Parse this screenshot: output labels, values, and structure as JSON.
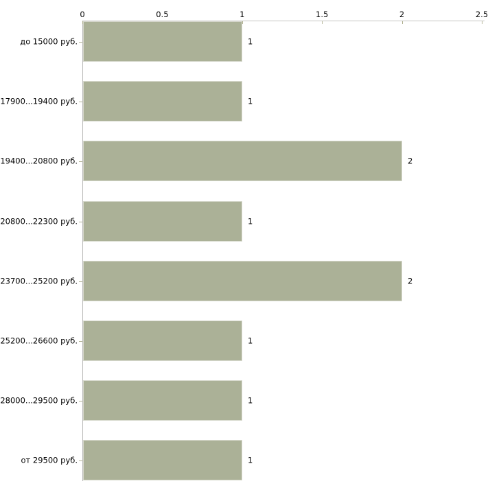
{
  "chart_data": {
    "type": "bar",
    "orientation": "horizontal",
    "title": "",
    "xlabel": "",
    "ylabel": "",
    "grid": false,
    "legend": null,
    "categories": [
      "до 15000 руб.",
      "17900...19400 руб.",
      "19400...20800 руб.",
      "20800...22300 руб.",
      "23700...25200 руб.",
      "25200...26600 руб.",
      "28000...29500 руб.",
      "от 29500 руб."
    ],
    "values": [
      1,
      1,
      2,
      1,
      2,
      1,
      1,
      1
    ],
    "value_labels": [
      "1",
      "1",
      "2",
      "1",
      "2",
      "1",
      "1",
      "1"
    ],
    "x_axis": {
      "position": "top",
      "min": 0,
      "max": 2.5,
      "ticks": [
        0,
        0.5,
        1,
        1.5,
        2,
        2.5
      ],
      "tick_labels": [
        "0",
        "0.5",
        "1",
        "1.5",
        "2",
        "2.5"
      ]
    },
    "colors": {
      "bar_fill": "#abb197",
      "bar_border": "#d7d9cd",
      "axis_line_x": "#c4c4c0",
      "axis_line_y": "#bcbcba",
      "tick_mark": "#b3b394",
      "text": "#000000",
      "background": "#ffffff"
    }
  }
}
